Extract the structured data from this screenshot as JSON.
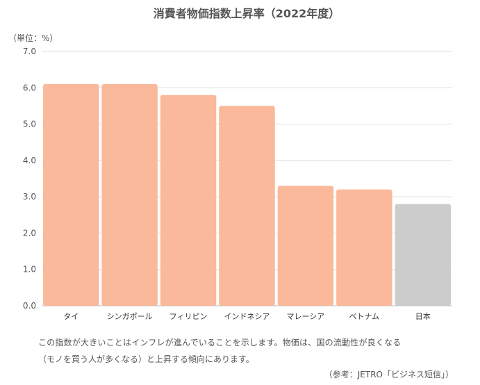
{
  "chart_data": {
    "type": "bar",
    "title": "消費者物価指数上昇率（2022年度）",
    "unit_label": "（単位：%）",
    "categories": [
      "タイ",
      "シンガポール",
      "フィリピン",
      "インドネシア",
      "マレーシア",
      "ベトナム",
      "日本"
    ],
    "values": [
      6.1,
      6.1,
      5.8,
      5.5,
      3.3,
      3.2,
      2.8
    ],
    "bar_colors": [
      "#fbb99b",
      "#fbb99b",
      "#fbb99b",
      "#fbb99b",
      "#fbb99b",
      "#fbb99b",
      "#cccccc"
    ],
    "ylim": [
      0,
      7
    ],
    "yticks": [
      "0.0",
      "1.0",
      "2.0",
      "3.0",
      "4.0",
      "5.0",
      "6.0",
      "7.0"
    ],
    "grid": true,
    "xlabel": "",
    "ylabel": ""
  },
  "notes": {
    "line1": "この指数が大きいことはインフレが進んでいることを示します。物価は、国の流動性が良くなる",
    "line2": "（モノを買う人が多くなる）と上昇する傾向にあります。",
    "source": "（参考：JETRO「ビジネス短信」）"
  }
}
